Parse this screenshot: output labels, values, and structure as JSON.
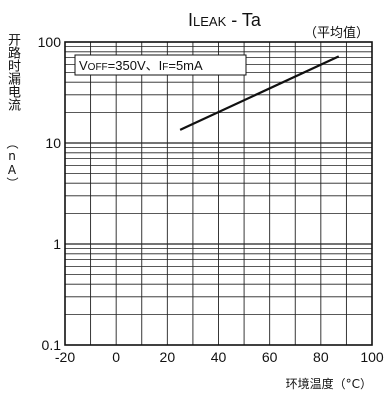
{
  "chart_data": {
    "type": "line",
    "title_main": "I",
    "title_sub": "LEAK",
    "title_rest": " - Ta",
    "subtitle": "（平均值）",
    "ylabel": "开路时漏电流",
    "yunit": "（nA）",
    "xlabel": "环境温度（°C）",
    "annotation": {
      "v": "V",
      "v_sub": "OFF",
      "v_rest": "=350V、",
      "i": "I",
      "i_sub": "F",
      "i_rest": "=5mA"
    },
    "xlim": [
      -20,
      100
    ],
    "ylim": [
      0.1,
      100
    ],
    "yscale": "log",
    "xticks": [
      -20,
      0,
      20,
      40,
      60,
      80,
      100
    ],
    "xtick_labels": [
      "-20",
      "0",
      "20",
      "40",
      "60",
      "80",
      "100"
    ],
    "yticks": [
      0.1,
      1,
      10,
      100
    ],
    "ytick_labels": [
      "0.1",
      "1",
      "10",
      "100"
    ],
    "grid": true,
    "series": [
      {
        "x": [
          25,
          87
        ],
        "y": [
          13.5,
          72
        ],
        "color": "#111111"
      }
    ]
  }
}
